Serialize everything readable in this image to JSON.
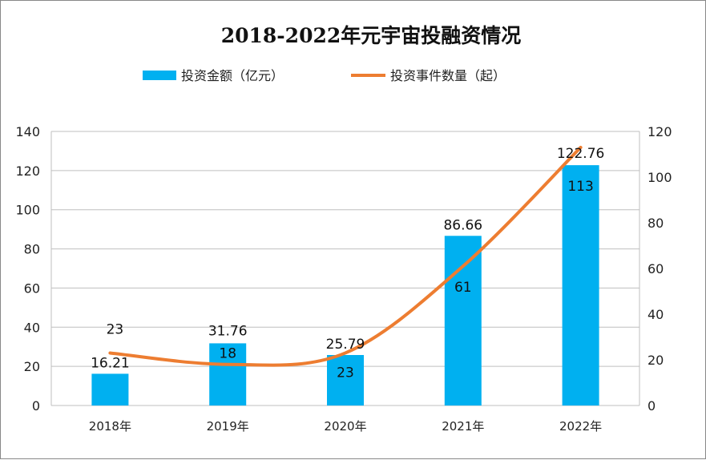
{
  "chart_data": {
    "type": "bar+line",
    "title": "2018-2022年元宇宙投融资情况",
    "categories": [
      "2018年",
      "2019年",
      "2020年",
      "2021年",
      "2022年"
    ],
    "series": [
      {
        "name": "投资金额（亿元）",
        "type": "bar",
        "axis": "left",
        "color": "#00B0F0",
        "values": [
          16.21,
          31.76,
          25.79,
          86.66,
          122.76
        ]
      },
      {
        "name": "投资事件数量（起）",
        "type": "line",
        "axis": "right",
        "color": "#ED7D31",
        "smooth": true,
        "values": [
          23,
          18,
          23,
          61,
          113
        ]
      }
    ],
    "y_left": {
      "range": [
        0,
        140
      ],
      "ticks": [
        "0",
        "20",
        "40",
        "60",
        "80",
        "100",
        "120",
        "140"
      ]
    },
    "y_right": {
      "range": [
        0,
        120
      ],
      "ticks": [
        "0",
        "20",
        "40",
        "60",
        "80",
        "100",
        "120"
      ]
    },
    "grid": true,
    "legend_position": "top"
  }
}
